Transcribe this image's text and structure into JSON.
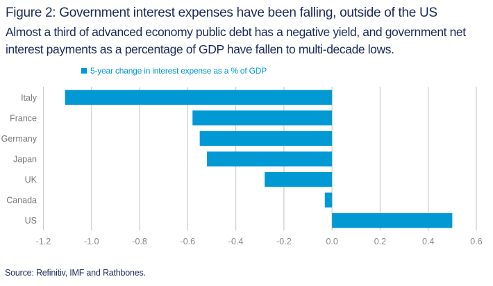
{
  "header": {
    "title": "Figure 2: Government interest expenses have been falling, outside of the US",
    "subtitle": "Almost a third of advanced economy public debt has a negative yield, and government net interest payments as a percentage of GDP have fallen to multi-decade lows."
  },
  "footer": {
    "source": "Source: Refinitiv, IMF and Rathbones."
  },
  "colors": {
    "bar": "#0099d4",
    "grid": "#cccccc",
    "text": "#1b2a5a",
    "tick": "#888888"
  },
  "chart_data": {
    "type": "bar",
    "orientation": "horizontal",
    "title": "Figure 2: Government interest expenses have been falling, outside of the US",
    "categories": [
      "Italy",
      "France",
      "Germany",
      "Japan",
      "UK",
      "Canada",
      "US"
    ],
    "series": [
      {
        "name": "5-year change in interest expense as a % of GDP",
        "values": [
          -1.11,
          -0.58,
          -0.55,
          -0.52,
          -0.28,
          -0.03,
          0.5
        ]
      }
    ],
    "xlabel": "",
    "ylabel": "",
    "xlim": [
      -1.2,
      0.6
    ],
    "xticks": [
      -1.2,
      -1.0,
      -0.8,
      -0.6,
      -0.4,
      -0.2,
      0.0,
      0.2,
      0.4,
      0.6
    ],
    "xtick_labels": [
      "-1.2",
      "-1.0",
      "-0.8",
      "-0.6",
      "-0.4",
      "-0.2",
      "0.0",
      "0.2",
      "0.4",
      "0.6"
    ],
    "grid": "vertical",
    "legend": "top"
  }
}
